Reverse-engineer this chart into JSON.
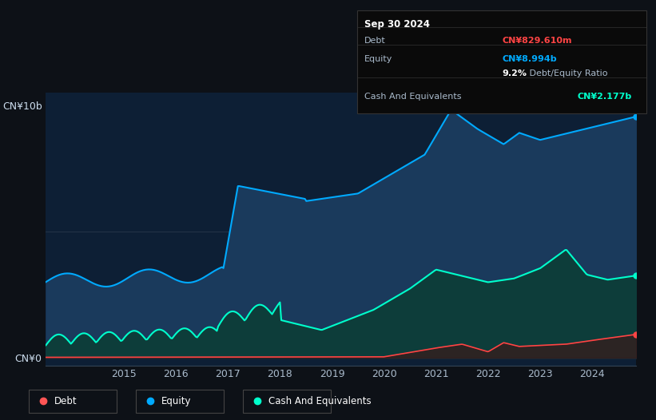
{
  "bg_color": "#0d1117",
  "plot_bg_color": "#0d1f35",
  "tooltip_bg": "#0a0a0a",
  "tooltip_border": "#333333",
  "date_label": "Sep 30 2024",
  "debt_label": "Debt",
  "debt_value": "CN¥829.610m",
  "debt_color": "#ff4444",
  "equity_label": "Equity",
  "equity_value": "CN¥8.994b",
  "equity_color": "#00aaff",
  "ratio_bold": "9.2%",
  "ratio_text": " Debt/Equity Ratio",
  "cash_label": "Cash And Equivalents",
  "cash_value": "CN¥2.177b",
  "cash_color": "#00ffcc",
  "y_label_top": "CN¥10b",
  "y_label_bottom": "CN¥0",
  "equity_fill": "#1a3a5c",
  "cash_fill": "#0d3d3a",
  "debt_fill": "#3a1a1a",
  "legend": [
    {
      "label": "Debt",
      "color": "#ff5555"
    },
    {
      "label": "Equity",
      "color": "#00aaff"
    },
    {
      "label": "Cash And Equivalents",
      "color": "#00ffcc"
    }
  ],
  "grid_color": "#334455",
  "tick_color": "#aabbcc"
}
